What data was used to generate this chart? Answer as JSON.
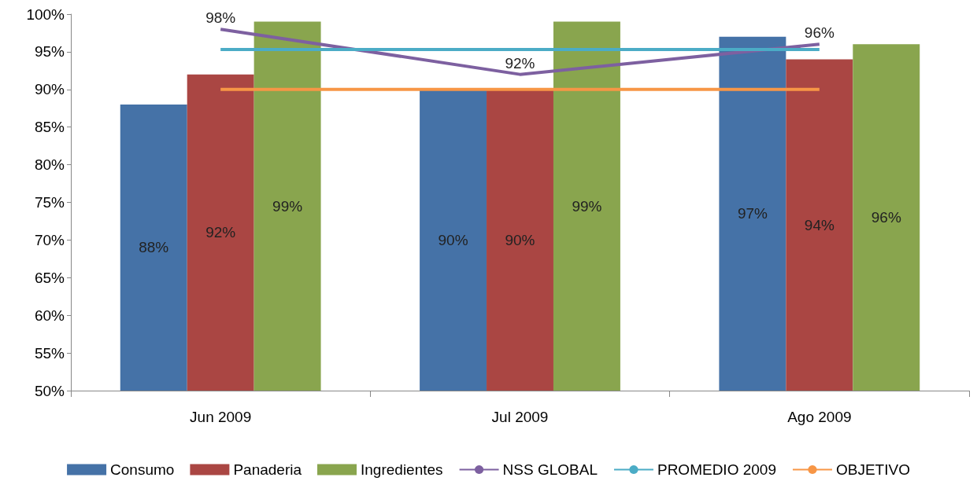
{
  "chart_data": {
    "type": "bar",
    "categories": [
      "Jun 2009",
      "Jul 2009",
      "Ago 2009"
    ],
    "series": [
      {
        "name": "Consumo",
        "color": "#4572a7",
        "values": [
          88,
          90,
          97
        ],
        "value_labels": [
          "88%",
          "90%",
          "97%"
        ]
      },
      {
        "name": "Panaderia",
        "color": "#aa4643",
        "values": [
          92,
          90,
          94
        ],
        "value_labels": [
          "92%",
          "90%",
          "94%"
        ]
      },
      {
        "name": "Ingredientes",
        "color": "#89a54e",
        "values": [
          99,
          99,
          96
        ],
        "value_labels": [
          "99%",
          "99%",
          "96%"
        ]
      },
      {
        "name": "NSS GLOBAL",
        "type": "line",
        "color": "#7d60a0",
        "values": [
          98,
          92,
          96
        ],
        "value_labels": [
          "98%",
          "92%",
          "96%"
        ]
      },
      {
        "name": "PROMEDIO 2009",
        "type": "line",
        "color": "#4bacc6",
        "values": [
          95.3,
          95.3,
          95.3
        ]
      },
      {
        "name": "OBJETIVO",
        "type": "line",
        "color": "#f79646",
        "values": [
          90,
          90,
          90
        ]
      }
    ],
    "ylim": [
      50,
      100
    ],
    "yticks": [
      {
        "value": 50,
        "label": "50%"
      },
      {
        "value": 55,
        "label": "55%"
      },
      {
        "value": 60,
        "label": "60%"
      },
      {
        "value": 65,
        "label": "65%"
      },
      {
        "value": 70,
        "label": "70%"
      },
      {
        "value": 75,
        "label": "75%"
      },
      {
        "value": 80,
        "label": "80%"
      },
      {
        "value": 85,
        "label": "85%"
      },
      {
        "value": 90,
        "label": "90%"
      },
      {
        "value": 95,
        "label": "95%"
      },
      {
        "value": 100,
        "label": "100%"
      }
    ],
    "legend": "bottom",
    "marker": "none",
    "line_style": "solid"
  }
}
